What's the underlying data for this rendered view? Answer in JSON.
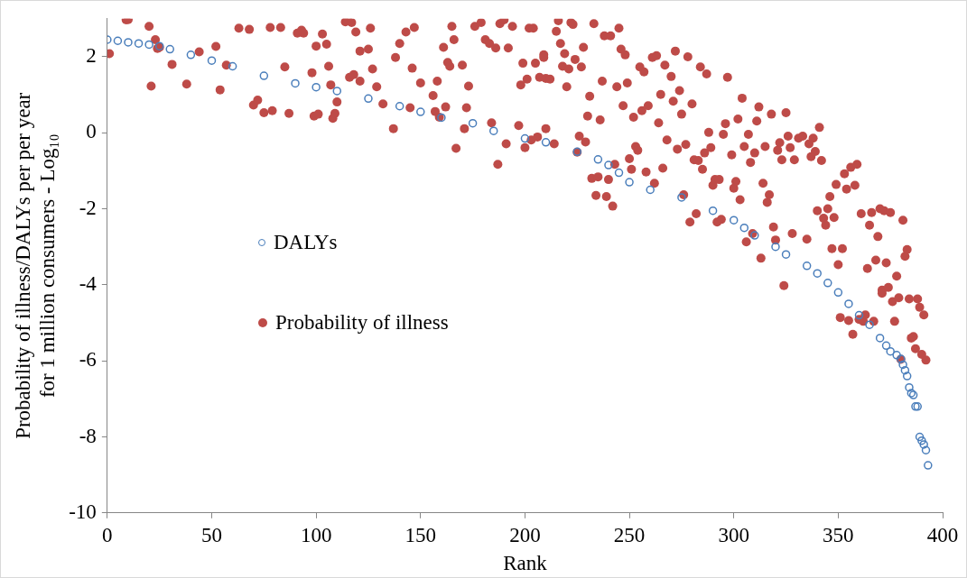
{
  "chart_data": {
    "type": "scatter",
    "xlabel": "Rank",
    "ylabel": "Probability of illness/DALYs per per year\nfor 1 million consumers - Log₁₀",
    "xlim": [
      0,
      400
    ],
    "xticks": [
      0,
      50,
      100,
      150,
      200,
      250,
      300,
      350,
      400
    ],
    "ylim": [
      -10,
      3
    ],
    "yticks": [
      -10,
      -8,
      -6,
      -4,
      -2,
      0,
      2
    ],
    "grid": false,
    "legend": "left",
    "marker": "circle",
    "series": [
      {
        "name": "DALYs",
        "color": "#4a7ebb",
        "x": [
          0,
          5,
          10,
          15,
          20,
          25,
          30,
          40,
          50,
          60,
          75,
          90,
          100,
          110,
          125,
          140,
          150,
          160,
          175,
          185,
          200,
          210,
          225,
          235,
          240,
          245,
          250,
          260,
          275,
          290,
          300,
          305,
          310,
          320,
          325,
          335,
          340,
          345,
          350,
          355,
          360,
          365,
          370,
          373,
          375,
          378,
          380,
          381,
          382,
          383,
          384,
          385,
          386,
          387,
          388,
          389,
          390,
          391,
          392,
          393
        ],
        "values": [
          2.45,
          2.42,
          2.38,
          2.35,
          2.32,
          2.28,
          2.2,
          2.05,
          1.9,
          1.75,
          1.5,
          1.3,
          1.2,
          1.1,
          0.9,
          0.7,
          0.55,
          0.4,
          0.25,
          0.05,
          -0.15,
          -0.25,
          -0.5,
          -0.7,
          -0.85,
          -1.05,
          -1.3,
          -1.5,
          -1.7,
          -2.05,
          -2.3,
          -2.5,
          -2.7,
          -3.0,
          -3.2,
          -3.5,
          -3.7,
          -3.95,
          -4.2,
          -4.5,
          -4.8,
          -5.05,
          -5.4,
          -5.6,
          -5.75,
          -5.85,
          -5.95,
          -6.1,
          -6.25,
          -6.4,
          -6.7,
          -6.85,
          -6.9,
          -7.2,
          -7.2,
          -8.0,
          -8.1,
          -8.2,
          -8.35,
          -8.75
        ]
      },
      {
        "name": "Probability of illness",
        "color": "#be4b48",
        "x": [
          1,
          9,
          10,
          20,
          21,
          23,
          24,
          25,
          31,
          38,
          44,
          52,
          54,
          57,
          63,
          68,
          70,
          72,
          75,
          78,
          79,
          83,
          85,
          87,
          91,
          93,
          94,
          98,
          99,
          100,
          101,
          103,
          105,
          106,
          107,
          108,
          109,
          110,
          114,
          115,
          116,
          117,
          118,
          119,
          121,
          121,
          125,
          126,
          127,
          129,
          132,
          137,
          138,
          140,
          143,
          145,
          146,
          147,
          150,
          156,
          157,
          158,
          159,
          161,
          162,
          163,
          164,
          165,
          166,
          167,
          170,
          171,
          172,
          173,
          176,
          179,
          181,
          183,
          184,
          186,
          187,
          188,
          190,
          191,
          192,
          194,
          197,
          198,
          199,
          200,
          201,
          202,
          203,
          204,
          205,
          206,
          207,
          209,
          209,
          210,
          210,
          212,
          214,
          215,
          216,
          217,
          218,
          219,
          220,
          221,
          222,
          223,
          224,
          225,
          226,
          227,
          228,
          229,
          230,
          231,
          232,
          233,
          234,
          235,
          236,
          237,
          238,
          239,
          240,
          241,
          242,
          243,
          244,
          245,
          246,
          247,
          248,
          249,
          250,
          251,
          252,
          253,
          254,
          255,
          256,
          257,
          258,
          259,
          261,
          262,
          263,
          264,
          265,
          266,
          267,
          268,
          270,
          271,
          272,
          273,
          274,
          275,
          276,
          277,
          278,
          279,
          280,
          281,
          282,
          283,
          284,
          285,
          286,
          287,
          288,
          289,
          290,
          291,
          292,
          293,
          294,
          295,
          296,
          297,
          299,
          300,
          301,
          302,
          303,
          304,
          305,
          306,
          307,
          308,
          309,
          310,
          311,
          312,
          313,
          314,
          315,
          316,
          317,
          318,
          319,
          320,
          321,
          322,
          323,
          324,
          325,
          326,
          327,
          328,
          329,
          331,
          333,
          335,
          336,
          337,
          338,
          339,
          340,
          341,
          342,
          343,
          344,
          345,
          346,
          347,
          348,
          349,
          350,
          351,
          352,
          353,
          354,
          355,
          356,
          357,
          358,
          359,
          360,
          361,
          362,
          363,
          364,
          365,
          366,
          367,
          368,
          369,
          370,
          371,
          371,
          372,
          373,
          374,
          375,
          376,
          377,
          378,
          379,
          380,
          381,
          382,
          383,
          384,
          385,
          386,
          387,
          388,
          389,
          390,
          391,
          392
        ],
        "values": [
          2.08,
          2.97,
          2.98,
          2.8,
          1.23,
          2.45,
          2.22,
          2.25,
          1.8,
          1.28,
          2.13,
          2.27,
          1.13,
          1.78,
          2.75,
          2.72,
          0.73,
          0.86,
          0.53,
          2.77,
          0.58,
          2.77,
          1.73,
          0.51,
          2.62,
          2.7,
          2.62,
          1.58,
          0.44,
          2.28,
          0.49,
          2.6,
          2.33,
          1.75,
          1.26,
          0.38,
          0.51,
          0.81,
          2.92,
          2.98,
          1.46,
          2.9,
          1.53,
          2.65,
          2.15,
          1.36,
          2.2,
          2.75,
          1.68,
          1.21,
          0.76,
          0.11,
          1.98,
          2.35,
          2.65,
          0.66,
          1.7,
          2.77,
          1.31,
          0.98,
          0.56,
          1.36,
          0.41,
          2.25,
          0.68,
          1.85,
          1.75,
          2.8,
          2.45,
          -0.41,
          1.78,
          0.11,
          0.66,
          1.23,
          2.8,
          2.9,
          2.45,
          2.35,
          0.26,
          2.23,
          -0.83,
          2.87,
          2.97,
          -0.29,
          2.23,
          2.8,
          0.19,
          1.26,
          1.83,
          -0.39,
          1.41,
          2.75,
          -0.19,
          2.75,
          1.83,
          -0.11,
          1.46,
          2.05,
          1.98,
          1.43,
          0.11,
          1.41,
          -0.29,
          2.67,
          2.95,
          2.35,
          1.75,
          2.08,
          1.21,
          1.68,
          2.9,
          2.85,
          1.93,
          -0.51,
          -0.09,
          1.73,
          2.25,
          -0.24,
          0.44,
          0.96,
          -1.2,
          2.87,
          -1.65,
          -1.16,
          0.34,
          1.36,
          2.55,
          -1.68,
          -1.23,
          2.55,
          -1.93,
          -0.83,
          1.21,
          2.75,
          2.2,
          0.71,
          2.05,
          1.31,
          -0.68,
          -0.96,
          0.41,
          -0.36,
          -0.46,
          1.73,
          0.58,
          1.6,
          -1.03,
          0.71,
          1.98,
          -1.33,
          2.03,
          0.26,
          1.01,
          -0.93,
          1.78,
          -0.19,
          1.48,
          0.83,
          2.15,
          -0.43,
          1.11,
          0.49,
          -1.63,
          -0.31,
          2.0,
          -2.35,
          0.76,
          -0.71,
          -2.13,
          -0.73,
          1.73,
          -0.96,
          -0.53,
          1.55,
          0.01,
          -0.39,
          -1.38,
          -1.23,
          -2.35,
          -1.23,
          -2.28,
          -0.04,
          0.24,
          1.46,
          -0.58,
          -1.46,
          -1.28,
          0.36,
          -1.76,
          0.91,
          -0.36,
          -2.87,
          -0.04,
          -0.78,
          -2.65,
          -0.53,
          0.31,
          0.68,
          -3.3,
          -1.33,
          -0.36,
          -1.83,
          -1.63,
          0.49,
          -2.48,
          -2.82,
          -0.46,
          -0.26,
          -0.71,
          -4.02,
          0.53,
          -0.09,
          -0.39,
          -2.65,
          -0.71,
          -0.14,
          -0.09,
          -2.8,
          -0.29,
          -0.63,
          -0.14,
          -0.49,
          -2.05,
          0.14,
          -0.73,
          -2.25,
          -2.43,
          -2.0,
          -1.68,
          -3.05,
          -2.23,
          -1.36,
          -3.47,
          -4.86,
          -3.05,
          -1.08,
          -1.48,
          -4.94,
          -0.91,
          -5.3,
          -1.38,
          -0.83,
          -4.91,
          -2.13,
          -4.96,
          -4.79,
          -3.57,
          -2.43,
          -2.1,
          -4.96,
          -3.35,
          -2.73,
          -2.0,
          -4.14,
          -4.22,
          -2.05,
          -3.42,
          -4.07,
          -2.1,
          -4.44,
          -4.96,
          -3.77,
          -4.34,
          -5.96,
          -2.3,
          -3.25,
          -3.07,
          -4.37,
          -5.4,
          -5.36,
          -5.68,
          -4.37,
          -4.59,
          -5.83,
          -4.79,
          -5.98
        ]
      }
    ]
  }
}
